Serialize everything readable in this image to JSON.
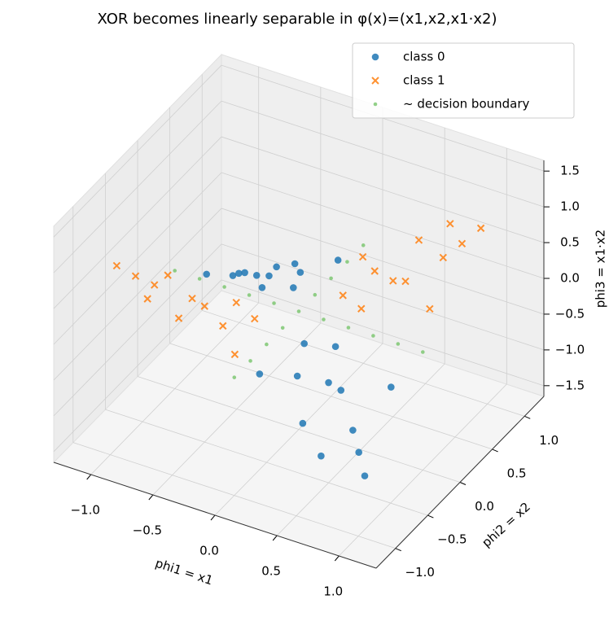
{
  "chart_data": {
    "type": "scatter3d",
    "title": "XOR becomes linearly separable in φ(x)=(x1,x2,x1·x2)",
    "xlabel": "phi1 = x1",
    "ylabel": "phi2 = x2",
    "zlabel": "phi3 = x1·x2",
    "xlim": [
      -1.3,
      1.3
    ],
    "ylim": [
      -1.3,
      1.3
    ],
    "zlim": [
      -1.65,
      1.65
    ],
    "xticks": [
      {
        "value": -1.0,
        "label": "−1.0"
      },
      {
        "value": -0.5,
        "label": "−0.5"
      },
      {
        "value": 0,
        "label": "0.0"
      },
      {
        "value": 0.5,
        "label": "0.5"
      },
      {
        "value": 1.0,
        "label": "1.0"
      }
    ],
    "yticks": [
      {
        "value": -1.0,
        "label": "−1.0"
      },
      {
        "value": -0.5,
        "label": "−0.5"
      },
      {
        "value": 0,
        "label": "0.0"
      },
      {
        "value": 0.5,
        "label": "0.5"
      },
      {
        "value": 1.0,
        "label": "1.0"
      }
    ],
    "zticks": [
      {
        "value": -1.5,
        "label": "−1.5"
      },
      {
        "value": -1.0,
        "label": "−1.0"
      },
      {
        "value": -0.5,
        "label": "−0.5"
      },
      {
        "value": 0,
        "label": "0.0"
      },
      {
        "value": 0.5,
        "label": "0.5"
      },
      {
        "value": 1.0,
        "label": "1.0"
      },
      {
        "value": 1.5,
        "label": "1.5"
      }
    ],
    "grid": true,
    "legend": "upper right",
    "series": [
      {
        "name": "class 0",
        "color": "#1f77b4",
        "marker": "circle",
        "x": [
          0.8,
          0.5,
          0.9,
          0.3,
          0.6,
          1.0,
          0.7,
          0.2,
          0.4,
          0.9,
          -0.8,
          -0.5,
          -0.9,
          -0.3,
          -0.6,
          -1.0,
          -0.7,
          -0.2,
          -0.4,
          -0.9,
          0.5,
          -0.5,
          0.1,
          -0.1
        ],
        "y": [
          -0.7,
          -0.9,
          -0.3,
          -0.6,
          -0.5,
          -0.9,
          -1.0,
          -0.3,
          -0.2,
          -0.8,
          0.7,
          0.9,
          0.3,
          0.6,
          0.5,
          0.9,
          1.0,
          0.3,
          0.2,
          0.8,
          -0.5,
          0.5,
          -0.8,
          0.8
        ],
        "z": [
          -0.56,
          -0.45,
          -0.27,
          -0.18,
          -0.3,
          -0.9,
          -0.7,
          -0.06,
          -0.08,
          -0.72,
          -0.56,
          -0.45,
          -0.27,
          -0.18,
          -0.3,
          -0.9,
          -0.7,
          -0.06,
          -0.08,
          -0.72,
          -0.25,
          -0.25,
          -0.08,
          -0.08
        ]
      },
      {
        "name": "class 1",
        "color": "#ff7f0e",
        "marker": "x",
        "x": [
          0.8,
          0.5,
          0.9,
          0.3,
          0.6,
          1.0,
          0.7,
          0.2,
          0.4,
          0.9,
          -0.8,
          -0.5,
          -0.9,
          -0.3,
          -0.6,
          -1.0,
          -0.7,
          -0.2,
          -0.4,
          -0.9,
          0.5,
          -0.5,
          0.1,
          -0.1
        ],
        "y": [
          0.7,
          0.9,
          0.3,
          0.6,
          0.5,
          0.9,
          1.0,
          0.3,
          0.2,
          0.8,
          -0.7,
          -0.9,
          -0.3,
          -0.6,
          -0.5,
          -0.9,
          -1.0,
          -0.3,
          -0.2,
          -0.8,
          0.5,
          -0.5,
          0.8,
          -0.8
        ],
        "z": [
          0.56,
          0.45,
          0.27,
          0.18,
          0.3,
          0.9,
          0.7,
          0.06,
          0.08,
          0.72,
          0.56,
          0.45,
          0.27,
          0.18,
          0.3,
          0.9,
          0.7,
          0.06,
          0.08,
          0.72,
          0.25,
          0.25,
          0.08,
          0.08
        ]
      },
      {
        "name": "~ decision boundary",
        "color": "#77c46a",
        "marker": "dot",
        "x": [
          0,
          0,
          0,
          0,
          0,
          0,
          0,
          0,
          0,
          -1.0,
          -0.8,
          -0.6,
          -0.4,
          -0.2,
          0.2,
          0.4,
          0.6,
          0.8,
          1.0
        ],
        "y": [
          -1.0,
          -0.75,
          -0.5,
          -0.25,
          0,
          0.25,
          0.5,
          0.75,
          1.0,
          0,
          0,
          0,
          0,
          0,
          0,
          0,
          0,
          0,
          0
        ],
        "z": [
          0,
          0,
          0,
          0,
          0,
          0,
          0,
          0,
          0,
          0,
          0,
          0,
          0,
          0,
          0,
          0,
          0,
          0,
          0
        ]
      }
    ]
  }
}
